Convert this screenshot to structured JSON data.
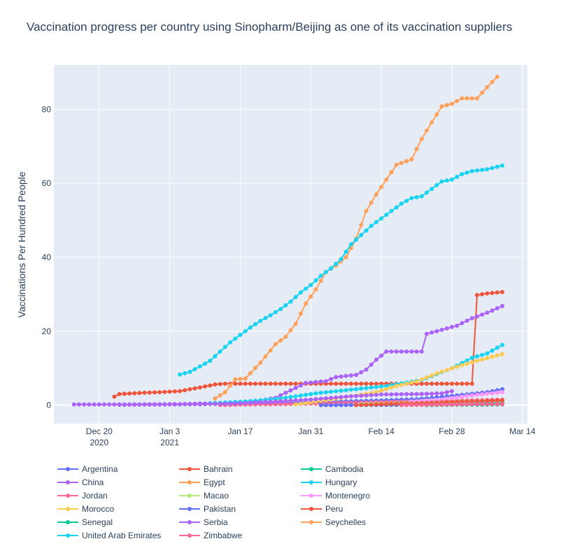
{
  "chart_data": {
    "type": "line",
    "title": "Vaccination progress per country using Sinopharm/Beijing as one of its vaccination suppliers",
    "xlabel": "",
    "ylabel": "Vaccinations Per Hundred People",
    "xlim": [
      "2020-12-11",
      "2021-03-15"
    ],
    "ylim": [
      -5,
      92
    ],
    "x_ticks": [
      {
        "date": "2020-12-20",
        "label": [
          "Dec 20",
          "2020"
        ]
      },
      {
        "date": "2021-01-03",
        "label": [
          "Jan 3",
          "2021"
        ]
      },
      {
        "date": "2021-01-17",
        "label": [
          "Jan 17"
        ]
      },
      {
        "date": "2021-01-31",
        "label": [
          "Jan 31"
        ]
      },
      {
        "date": "2021-02-14",
        "label": [
          "Feb 14"
        ]
      },
      {
        "date": "2021-02-28",
        "label": [
          "Feb 28"
        ]
      },
      {
        "date": "2021-03-14",
        "label": [
          "Mar 14"
        ]
      }
    ],
    "y_ticks": [
      0,
      20,
      40,
      60,
      80
    ],
    "grid": true,
    "legend_position": "bottom",
    "series": [
      {
        "name": "Argentina",
        "color": "#636efa",
        "points": [
          [
            "2021-01-04",
            0.2
          ],
          [
            "2021-01-10",
            0.3
          ],
          [
            "2021-01-17",
            0.5
          ],
          [
            "2021-01-24",
            0.6
          ],
          [
            "2021-01-31",
            0.8
          ],
          [
            "2021-02-07",
            1.0
          ],
          [
            "2021-02-14",
            1.3
          ],
          [
            "2021-02-21",
            1.6
          ],
          [
            "2021-02-28",
            2.5
          ],
          [
            "2021-03-07",
            3.5
          ],
          [
            "2021-03-10",
            4.3
          ]
        ]
      },
      {
        "name": "Bahrain",
        "color": "#EF553B",
        "points": [
          [
            "2020-12-23",
            2.3
          ],
          [
            "2020-12-24",
            3.0
          ],
          [
            "2020-12-28",
            3.3
          ],
          [
            "2021-01-01",
            3.5
          ],
          [
            "2021-01-05",
            3.8
          ],
          [
            "2021-01-09",
            4.8
          ],
          [
            "2021-01-12",
            5.6
          ],
          [
            "2021-01-14",
            5.8
          ],
          [
            "2021-01-20",
            5.8
          ],
          [
            "2021-02-01",
            5.8
          ],
          [
            "2021-02-15",
            5.8
          ],
          [
            "2021-03-01",
            5.8
          ],
          [
            "2021-03-04",
            5.8
          ],
          [
            "2021-03-05",
            29.8
          ],
          [
            "2021-03-07",
            30.2
          ],
          [
            "2021-03-10",
            30.6
          ]
        ]
      },
      {
        "name": "Cambodia",
        "color": "#00cc96",
        "points": [
          [
            "2021-02-10",
            0.05
          ],
          [
            "2021-02-17",
            0.1
          ],
          [
            "2021-02-24",
            0.2
          ],
          [
            "2021-03-03",
            0.4
          ],
          [
            "2021-03-10",
            0.7
          ]
        ]
      },
      {
        "name": "China",
        "color": "#ab63fa",
        "points": [
          [
            "2020-12-15",
            0.2
          ],
          [
            "2020-12-25",
            0.2
          ],
          [
            "2021-01-05",
            0.3
          ],
          [
            "2021-01-15",
            0.6
          ],
          [
            "2021-01-20",
            1.0
          ],
          [
            "2021-01-24",
            2.0
          ],
          [
            "2021-01-27",
            4.0
          ],
          [
            "2021-01-30",
            6.0
          ],
          [
            "2021-02-03",
            6.5
          ],
          [
            "2021-02-05",
            7.6
          ],
          [
            "2021-02-09",
            8.2
          ],
          [
            "2021-02-11",
            9.6
          ],
          [
            "2021-02-13",
            12.3
          ],
          [
            "2021-02-15",
            14.5
          ],
          [
            "2021-02-22",
            14.5
          ],
          [
            "2021-02-23",
            19.3
          ],
          [
            "2021-02-25",
            20.0
          ],
          [
            "2021-03-01",
            21.5
          ],
          [
            "2021-03-04",
            23.5
          ],
          [
            "2021-03-07",
            25.0
          ],
          [
            "2021-03-10",
            26.8
          ]
        ]
      },
      {
        "name": "Egypt",
        "color": "#FFA15A",
        "points": [
          [
            "2021-02-20",
            0.5
          ],
          [
            "2021-02-27",
            0.7
          ],
          [
            "2021-03-03",
            1.0
          ],
          [
            "2021-03-10",
            1.2
          ]
        ]
      },
      {
        "name": "Hungary",
        "color": "#19d3f3",
        "points": [
          [
            "2021-01-11",
            0.5
          ],
          [
            "2021-01-18",
            1.0
          ],
          [
            "2021-01-25",
            1.8
          ],
          [
            "2021-02-01",
            3.2
          ],
          [
            "2021-02-08",
            4.2
          ],
          [
            "2021-02-15",
            5.2
          ],
          [
            "2021-02-22",
            6.8
          ],
          [
            "2021-02-28",
            10.0
          ],
          [
            "2021-03-04",
            12.8
          ],
          [
            "2021-03-07",
            14.0
          ],
          [
            "2021-03-10",
            16.3
          ]
        ]
      },
      {
        "name": "Jordan",
        "color": "#FF6692",
        "points": [
          [
            "2021-01-13",
            0.05
          ],
          [
            "2021-01-20",
            0.2
          ],
          [
            "2021-01-27",
            0.3
          ],
          [
            "2021-02-03",
            0.5
          ],
          [
            "2021-02-10",
            0.7
          ],
          [
            "2021-02-17",
            0.9
          ],
          [
            "2021-02-24",
            1.1
          ],
          [
            "2021-03-03",
            1.3
          ],
          [
            "2021-03-10",
            1.5
          ]
        ]
      },
      {
        "name": "Macao",
        "color": "#B6E880",
        "points": [
          [
            "2021-02-10",
            0.3
          ],
          [
            "2021-02-17",
            0.5
          ],
          [
            "2021-02-24",
            0.8
          ],
          [
            "2021-03-03",
            1.0
          ],
          [
            "2021-03-10",
            1.2
          ]
        ]
      },
      {
        "name": "Montenegro",
        "color": "#FF97FF",
        "points": [
          [
            "2021-02-20",
            1.0
          ],
          [
            "2021-02-26",
            1.5
          ],
          [
            "2021-03-03",
            2.5
          ],
          [
            "2021-03-10",
            3.5
          ]
        ]
      },
      {
        "name": "Morocco",
        "color": "#FECB52",
        "points": [
          [
            "2021-01-28",
            0.2
          ],
          [
            "2021-02-01",
            1.0
          ],
          [
            "2021-02-05",
            1.8
          ],
          [
            "2021-02-09",
            2.6
          ],
          [
            "2021-02-13",
            3.5
          ],
          [
            "2021-02-17",
            5.2
          ],
          [
            "2021-02-21",
            6.4
          ],
          [
            "2021-02-25",
            8.6
          ],
          [
            "2021-03-01",
            10.4
          ],
          [
            "2021-03-05",
            12.0
          ],
          [
            "2021-03-10",
            13.8
          ]
        ]
      },
      {
        "name": "Pakistan",
        "color": "#636efa",
        "points": [
          [
            "2021-02-02",
            0.01
          ],
          [
            "2021-02-10",
            0.05
          ],
          [
            "2021-02-18",
            0.1
          ],
          [
            "2021-02-26",
            0.2
          ],
          [
            "2021-03-05",
            0.3
          ],
          [
            "2021-03-10",
            0.3
          ]
        ]
      },
      {
        "name": "Peru",
        "color": "#EF553B",
        "points": [
          [
            "2021-02-09",
            0.01
          ],
          [
            "2021-02-15",
            0.3
          ],
          [
            "2021-02-21",
            0.5
          ],
          [
            "2021-02-27",
            0.8
          ],
          [
            "2021-03-05",
            1.0
          ],
          [
            "2021-03-10",
            1.3
          ]
        ]
      },
      {
        "name": "Senegal",
        "color": "#00cc96",
        "points": [
          [
            "2021-02-23",
            0.0
          ],
          [
            "2021-03-01",
            0.1
          ],
          [
            "2021-03-06",
            0.1
          ],
          [
            "2021-03-10",
            0.2
          ]
        ]
      },
      {
        "name": "Serbia",
        "color": "#ab63fa",
        "points": [
          [
            "2020-12-24",
            0.1
          ],
          [
            "2021-01-03",
            0.2
          ],
          [
            "2021-01-10",
            0.3
          ],
          [
            "2021-01-17",
            0.5
          ],
          [
            "2021-01-24",
            1.0
          ],
          [
            "2021-01-31",
            1.5
          ],
          [
            "2021-02-07",
            2.3
          ],
          [
            "2021-02-14",
            2.9
          ],
          [
            "2021-02-21",
            3.0
          ],
          [
            "2021-02-26",
            3.2
          ],
          [
            "2021-02-28",
            3.8
          ]
        ]
      },
      {
        "name": "Seychelles",
        "color": "#FFA15A",
        "points": [
          [
            "2021-01-12",
            1.8
          ],
          [
            "2021-01-14",
            3.5
          ],
          [
            "2021-01-16",
            7.0
          ],
          [
            "2021-01-18",
            7.2
          ],
          [
            "2021-01-21",
            11.5
          ],
          [
            "2021-01-24",
            16.5
          ],
          [
            "2021-01-26",
            18.5
          ],
          [
            "2021-01-28",
            22.0
          ],
          [
            "2021-01-30",
            27.5
          ],
          [
            "2021-02-01",
            31.3
          ],
          [
            "2021-02-03",
            36.0
          ],
          [
            "2021-02-05",
            37.8
          ],
          [
            "2021-02-07",
            40.0
          ],
          [
            "2021-02-09",
            45.0
          ],
          [
            "2021-02-11",
            52.5
          ],
          [
            "2021-02-13",
            57.0
          ],
          [
            "2021-02-15",
            61.0
          ],
          [
            "2021-02-17",
            65.0
          ],
          [
            "2021-02-20",
            66.5
          ],
          [
            "2021-02-22",
            72.0
          ],
          [
            "2021-02-24",
            76.5
          ],
          [
            "2021-02-26",
            80.8
          ],
          [
            "2021-02-28",
            81.5
          ],
          [
            "2021-03-02",
            83.0
          ],
          [
            "2021-03-05",
            83.0
          ],
          [
            "2021-03-07",
            86.0
          ],
          [
            "2021-03-09",
            88.8
          ]
        ]
      },
      {
        "name": "United Arab Emirates",
        "color": "#19d3f3",
        "points": [
          [
            "2021-01-05",
            8.3
          ],
          [
            "2021-01-07",
            9.0
          ],
          [
            "2021-01-09",
            10.5
          ],
          [
            "2021-01-11",
            12.0
          ],
          [
            "2021-01-13",
            14.5
          ],
          [
            "2021-01-15",
            17.0
          ],
          [
            "2021-01-17",
            19.0
          ],
          [
            "2021-01-19",
            21.0
          ],
          [
            "2021-01-21",
            22.8
          ],
          [
            "2021-01-23",
            24.3
          ],
          [
            "2021-01-25",
            26.0
          ],
          [
            "2021-01-27",
            28.0
          ],
          [
            "2021-01-29",
            30.5
          ],
          [
            "2021-01-31",
            32.5
          ],
          [
            "2021-02-02",
            35.0
          ],
          [
            "2021-02-04",
            37.0
          ],
          [
            "2021-02-06",
            39.5
          ],
          [
            "2021-02-08",
            43.5
          ],
          [
            "2021-02-10",
            46.0
          ],
          [
            "2021-02-12",
            48.5
          ],
          [
            "2021-02-14",
            50.5
          ],
          [
            "2021-02-16",
            52.5
          ],
          [
            "2021-02-18",
            54.5
          ],
          [
            "2021-02-20",
            56.0
          ],
          [
            "2021-02-22",
            56.5
          ],
          [
            "2021-02-24",
            58.5
          ],
          [
            "2021-02-26",
            60.5
          ],
          [
            "2021-02-28",
            61.0
          ],
          [
            "2021-03-02",
            62.5
          ],
          [
            "2021-03-04",
            63.3
          ],
          [
            "2021-03-07",
            63.8
          ],
          [
            "2021-03-10",
            64.8
          ]
        ]
      },
      {
        "name": "Zimbabwe",
        "color": "#FF6692",
        "points": [
          [
            "2021-02-18",
            0.01
          ],
          [
            "2021-02-24",
            0.1
          ],
          [
            "2021-03-02",
            0.2
          ],
          [
            "2021-03-08",
            0.3
          ],
          [
            "2021-03-10",
            0.3
          ]
        ]
      }
    ]
  }
}
